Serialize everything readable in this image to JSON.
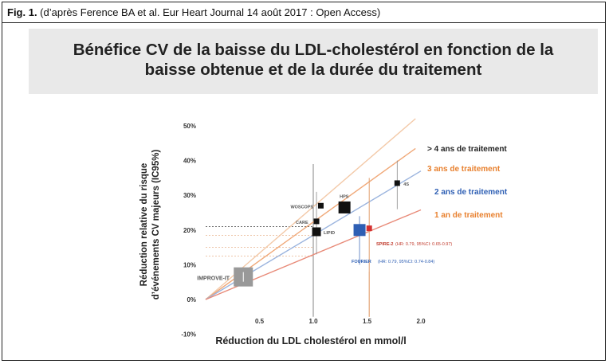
{
  "caption": {
    "label": "Fig. 1.",
    "text": " (d’après Ference BA et al. Eur Heart Journal 14 août 2017 : Open Access)"
  },
  "title_line1": "Bénéfice CV de la baisse du LDL-cholestérol  en fonction de la",
  "title_line2": "baisse obtenue et de la durée du traitement",
  "chart_data": {
    "type": "scatter",
    "xlabel": "Réduction du LDL cholestérol en mmol/l",
    "ylabel_line1": "Réduction relative du risque",
    "ylabel_line2": "d’événements CV majeurs (IC95%)",
    "xlim": [
      0,
      2.0
    ],
    "ylim": [
      -10,
      50
    ],
    "x_ticks": [
      {
        "value": 0.5,
        "label": "0.5"
      },
      {
        "value": 1.0,
        "label": "1.0"
      },
      {
        "value": 1.5,
        "label": "1.5"
      },
      {
        "value": 2.0,
        "label": "2.0"
      }
    ],
    "y_ticks": [
      {
        "value": 50,
        "label": "50%"
      },
      {
        "value": 40,
        "label": "40%"
      },
      {
        "value": 30,
        "label": "30%"
      },
      {
        "value": 20,
        "label": "20%"
      },
      {
        "value": 10,
        "label": "10%"
      },
      {
        "value": 0,
        "label": "0%"
      },
      {
        "value": -10,
        "label": "-10%"
      }
    ],
    "lines": [
      {
        "label": "> 4 ans de traitement",
        "slope": 26.7,
        "color": "#f3c9a8",
        "label_color": "#222222"
      },
      {
        "label": "3 ans de traitement",
        "slope": 22.3,
        "color": "#f0a878",
        "label_color": "#e8802e"
      },
      {
        "label": "2 ans de traitement",
        "slope": 18.5,
        "color": "#9bb4de",
        "label_color": "#2e5fb4"
      },
      {
        "label": "1 an de traitement",
        "slope": 12.9,
        "color": "#e88a78",
        "label_color": "#e8802e"
      }
    ],
    "points": [
      {
        "name": "WOSCOPS",
        "x": 1.07,
        "y": 27,
        "size": "small",
        "color": "#111111"
      },
      {
        "name": "CARE",
        "x": 1.03,
        "y": 22.5,
        "size": "small",
        "color": "#111111"
      },
      {
        "name": "LIPID",
        "x": 1.03,
        "y": 19.5,
        "size": "medium",
        "color": "#111111"
      },
      {
        "name": "HPS",
        "x": 1.29,
        "y": 26.5,
        "size": "large",
        "color": "#111111"
      },
      {
        "name": "4S",
        "x": 1.78,
        "y": 33.5,
        "size": "small",
        "color": "#111111"
      },
      {
        "name": "IMPROVE-IT",
        "x": 0.35,
        "y": 6.5,
        "size": "xlarge",
        "color": "#999999"
      },
      {
        "name": "FOURIER",
        "x": 1.43,
        "y": 20,
        "size": "large",
        "color": "#2e5fb4"
      },
      {
        "name": "SPIRE-2",
        "x": 1.52,
        "y": 20.5,
        "size": "small",
        "color": "#d43030"
      }
    ],
    "annotations": {
      "spire": "SPIRE-2",
      "spire_detail": "(HR: 0.79, 95%CI: 0.65-0.97)",
      "fourier": "FOURIER",
      "fourier_detail": "(HR: 0.79, 95%CI: 0.74-0.84)"
    }
  }
}
